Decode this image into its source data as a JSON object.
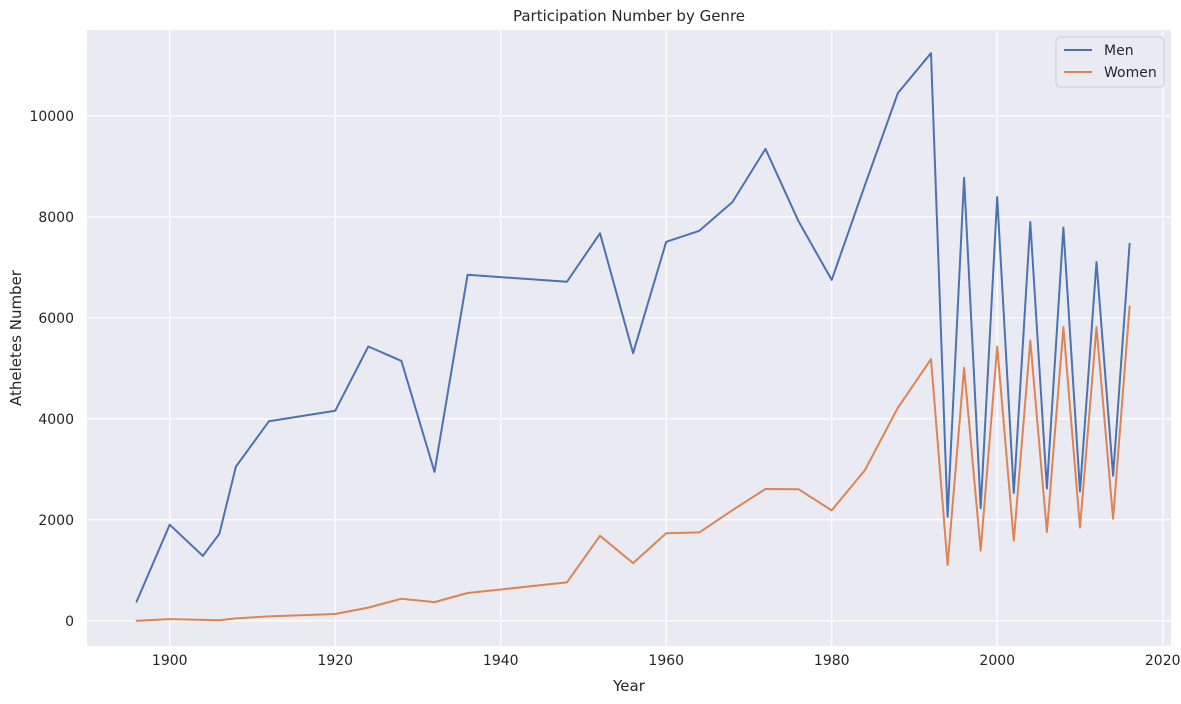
{
  "chart_data": {
    "type": "line",
    "title": "Participation Number by Genre",
    "xlabel": "Year",
    "ylabel": "Atheletes Number",
    "xlim": [
      1890,
      2021
    ],
    "ylim": [
      -500,
      11700
    ],
    "xticks": [
      1900,
      1920,
      1940,
      1960,
      1980,
      2000,
      2020
    ],
    "yticks": [
      0,
      2000,
      4000,
      6000,
      8000,
      10000
    ],
    "grid": true,
    "legend_position": "top-right",
    "colors": {
      "background": "#eaeaf2",
      "grid": "#ffffff",
      "men": "#4c72b0",
      "women": "#dd8452"
    },
    "series": [
      {
        "name": "Men",
        "color": "#4c72b0",
        "points": [
          [
            1896,
            380
          ],
          [
            1900,
            1903
          ],
          [
            1904,
            1285
          ],
          [
            1906,
            1722
          ],
          [
            1908,
            3054
          ],
          [
            1912,
            3953
          ],
          [
            1920,
            4158
          ],
          [
            1924,
            5432
          ],
          [
            1928,
            5146
          ],
          [
            1932,
            2948
          ],
          [
            1936,
            6852
          ],
          [
            1948,
            6714
          ],
          [
            1952,
            7674
          ],
          [
            1956,
            5298
          ],
          [
            1960,
            7505
          ],
          [
            1964,
            7724
          ],
          [
            1968,
            8291
          ],
          [
            1972,
            9345
          ],
          [
            1976,
            7910
          ],
          [
            1980,
            6751
          ],
          [
            1984,
            8620
          ],
          [
            1988,
            10453
          ],
          [
            1992,
            11240
          ],
          [
            1994,
            2056
          ],
          [
            1996,
            8772
          ],
          [
            1998,
            2230
          ],
          [
            2000,
            8390
          ],
          [
            2002,
            2530
          ],
          [
            2004,
            7897
          ],
          [
            2006,
            2620
          ],
          [
            2008,
            7786
          ],
          [
            2010,
            2560
          ],
          [
            2012,
            7105
          ],
          [
            2014,
            2870
          ],
          [
            2016,
            7465
          ]
        ]
      },
      {
        "name": "Women",
        "color": "#dd8452",
        "points": [
          [
            1896,
            0
          ],
          [
            1900,
            33
          ],
          [
            1904,
            16
          ],
          [
            1906,
            11
          ],
          [
            1908,
            47
          ],
          [
            1912,
            87
          ],
          [
            1920,
            134
          ],
          [
            1924,
            261
          ],
          [
            1928,
            437
          ],
          [
            1932,
            369
          ],
          [
            1936,
            549
          ],
          [
            1948,
            759
          ],
          [
            1952,
            1683
          ],
          [
            1956,
            1142
          ],
          [
            1960,
            1733
          ],
          [
            1964,
            1750
          ],
          [
            1968,
            2190
          ],
          [
            1972,
            2610
          ],
          [
            1976,
            2605
          ],
          [
            1980,
            2185
          ],
          [
            1984,
            2980
          ],
          [
            1988,
            4220
          ],
          [
            1992,
            5180
          ],
          [
            1994,
            1104
          ],
          [
            1996,
            5010
          ],
          [
            1998,
            1390
          ],
          [
            2000,
            5430
          ],
          [
            2002,
            1585
          ],
          [
            2004,
            5550
          ],
          [
            2006,
            1755
          ],
          [
            2008,
            5815
          ],
          [
            2010,
            1845
          ],
          [
            2012,
            5815
          ],
          [
            2014,
            2020
          ],
          [
            2016,
            6225
          ]
        ]
      }
    ]
  }
}
